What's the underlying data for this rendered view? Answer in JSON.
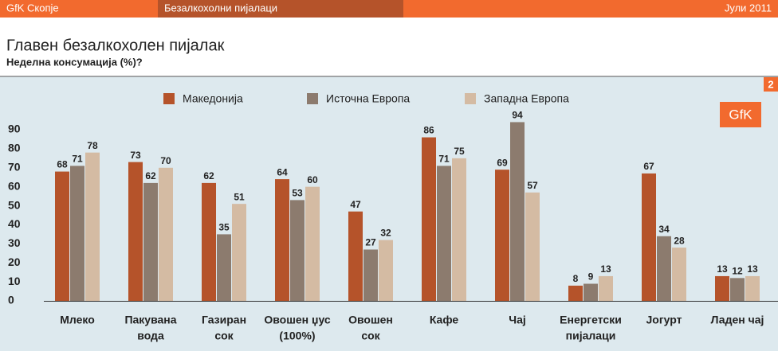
{
  "header": {
    "left": "GfK Скопје",
    "center": "Безалкохолни пијалаци",
    "right": "Јули 2011",
    "page": "2",
    "logo": "GfK"
  },
  "chart_data": {
    "type": "bar",
    "title": "Главен безалкохолен пијалак",
    "subtitle": "Неделна консумација (%)?",
    "categories": [
      [
        "Млеко"
      ],
      [
        "Пакувана",
        "вода"
      ],
      [
        "Газиран",
        "сок"
      ],
      [
        "Овошен џус",
        "(100%)"
      ],
      [
        "Овошен",
        "сок"
      ],
      [
        "Кафе"
      ],
      [
        "Чај"
      ],
      [
        "Енергетски",
        "пијалаци"
      ],
      [
        "Јогурт"
      ],
      [
        "Ладен чај"
      ]
    ],
    "series": [
      {
        "name": "Македонија",
        "color": "#b5532a",
        "values": [
          68,
          73,
          62,
          64,
          47,
          86,
          69,
          8,
          67,
          13
        ]
      },
      {
        "name": "Источна Европа",
        "color": "#8c7b6e",
        "values": [
          71,
          62,
          35,
          53,
          27,
          71,
          94,
          9,
          34,
          12
        ]
      },
      {
        "name": "Западна Европа",
        "color": "#d4bba3",
        "values": [
          78,
          70,
          51,
          60,
          32,
          75,
          57,
          13,
          28,
          13
        ]
      }
    ],
    "ylim": [
      0,
      90
    ],
    "yticks": [
      0,
      10,
      20,
      30,
      40,
      50,
      60,
      70,
      80,
      90
    ]
  }
}
